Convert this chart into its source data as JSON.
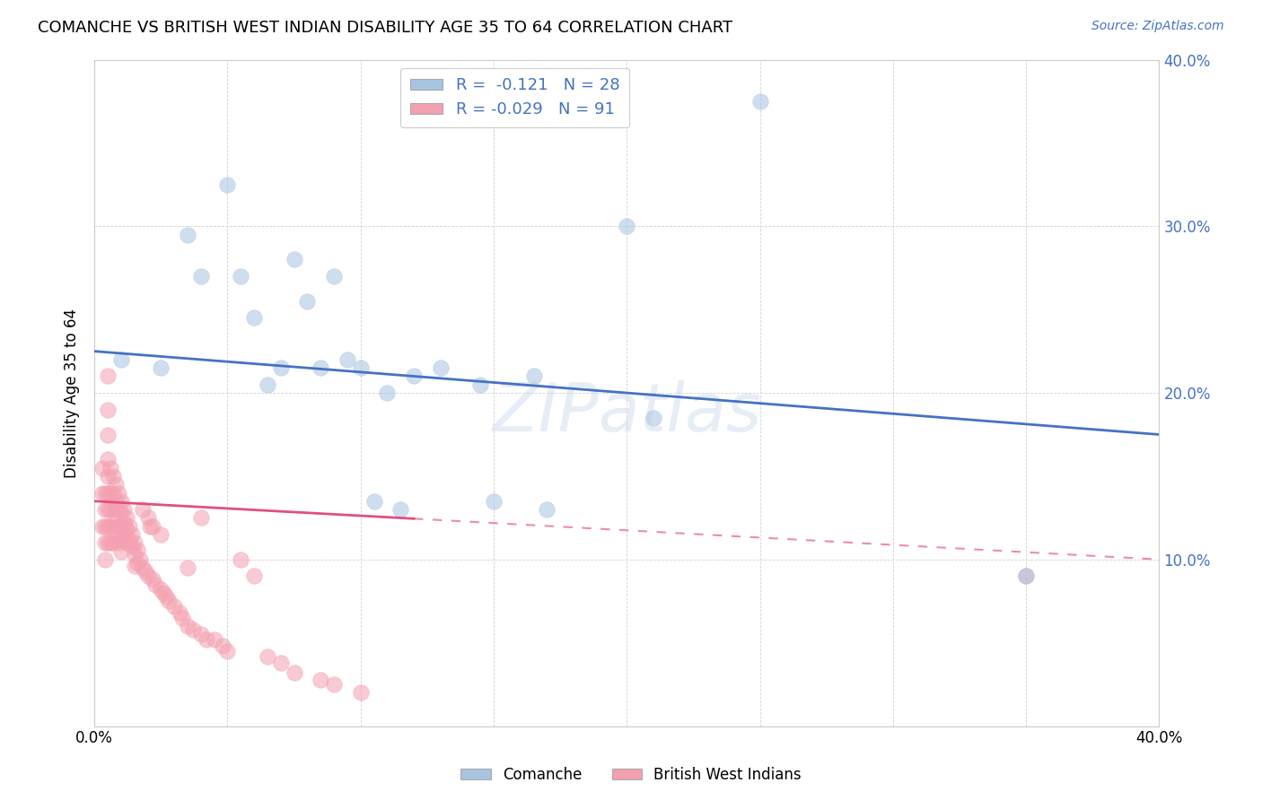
{
  "title": "COMANCHE VS BRITISH WEST INDIAN DISABILITY AGE 35 TO 64 CORRELATION CHART",
  "source": "Source: ZipAtlas.com",
  "ylabel": "Disability Age 35 to 64",
  "xlim": [
    0.0,
    0.4
  ],
  "ylim": [
    0.0,
    0.4
  ],
  "legend_R_comanche": "-0.121",
  "legend_N_comanche": "28",
  "legend_R_bwi": "-0.029",
  "legend_N_bwi": "91",
  "comanche_color": "#a8c4e0",
  "bwi_color": "#f4a0b0",
  "trendline_comanche_color": "#4472c4",
  "trendline_bwi_color": "#e05080",
  "watermark": "ZIPatlas",
  "comanche_x": [
    0.01,
    0.025,
    0.035,
    0.04,
    0.05,
    0.055,
    0.06,
    0.065,
    0.07,
    0.075,
    0.08,
    0.085,
    0.09,
    0.095,
    0.1,
    0.105,
    0.11,
    0.115,
    0.12,
    0.13,
    0.145,
    0.15,
    0.165,
    0.17,
    0.2,
    0.21,
    0.25,
    0.35
  ],
  "comanche_y": [
    0.22,
    0.215,
    0.295,
    0.27,
    0.325,
    0.27,
    0.245,
    0.205,
    0.215,
    0.28,
    0.255,
    0.215,
    0.27,
    0.22,
    0.215,
    0.135,
    0.2,
    0.13,
    0.21,
    0.215,
    0.205,
    0.135,
    0.21,
    0.13,
    0.3,
    0.185,
    0.375,
    0.09
  ],
  "bwi_x": [
    0.003,
    0.003,
    0.003,
    0.004,
    0.004,
    0.004,
    0.004,
    0.004,
    0.005,
    0.005,
    0.005,
    0.005,
    0.005,
    0.005,
    0.005,
    0.005,
    0.005,
    0.006,
    0.006,
    0.006,
    0.006,
    0.006,
    0.007,
    0.007,
    0.007,
    0.007,
    0.007,
    0.008,
    0.008,
    0.008,
    0.008,
    0.009,
    0.009,
    0.009,
    0.009,
    0.01,
    0.01,
    0.01,
    0.01,
    0.01,
    0.011,
    0.011,
    0.011,
    0.012,
    0.012,
    0.012,
    0.013,
    0.013,
    0.014,
    0.014,
    0.015,
    0.015,
    0.015,
    0.016,
    0.016,
    0.017,
    0.018,
    0.018,
    0.019,
    0.02,
    0.02,
    0.021,
    0.022,
    0.022,
    0.023,
    0.025,
    0.025,
    0.026,
    0.027,
    0.028,
    0.03,
    0.032,
    0.033,
    0.035,
    0.035,
    0.037,
    0.04,
    0.04,
    0.042,
    0.045,
    0.048,
    0.05,
    0.055,
    0.06,
    0.065,
    0.07,
    0.075,
    0.085,
    0.09,
    0.1,
    0.35
  ],
  "bwi_y": [
    0.155,
    0.14,
    0.12,
    0.14,
    0.13,
    0.12,
    0.11,
    0.1,
    0.21,
    0.19,
    0.175,
    0.16,
    0.15,
    0.14,
    0.13,
    0.12,
    0.11,
    0.155,
    0.14,
    0.13,
    0.12,
    0.11,
    0.15,
    0.14,
    0.13,
    0.12,
    0.11,
    0.145,
    0.135,
    0.125,
    0.115,
    0.14,
    0.13,
    0.12,
    0.11,
    0.135,
    0.128,
    0.12,
    0.112,
    0.105,
    0.13,
    0.122,
    0.115,
    0.125,
    0.118,
    0.11,
    0.12,
    0.112,
    0.115,
    0.108,
    0.11,
    0.103,
    0.096,
    0.106,
    0.098,
    0.1,
    0.13,
    0.095,
    0.093,
    0.125,
    0.09,
    0.12,
    0.12,
    0.088,
    0.085,
    0.115,
    0.082,
    0.08,
    0.078,
    0.075,
    0.072,
    0.068,
    0.065,
    0.095,
    0.06,
    0.058,
    0.125,
    0.055,
    0.052,
    0.052,
    0.048,
    0.045,
    0.1,
    0.09,
    0.042,
    0.038,
    0.032,
    0.028,
    0.025,
    0.02,
    0.09
  ],
  "trendline_comanche_x0": 0.0,
  "trendline_comanche_y0": 0.225,
  "trendline_comanche_x1": 0.4,
  "trendline_comanche_y1": 0.175,
  "trendline_bwi_x0": 0.0,
  "trendline_bwi_y0": 0.135,
  "trendline_bwi_x1": 0.4,
  "trendline_bwi_y1": 0.1,
  "trendline_bwi_solid_end": 0.12
}
